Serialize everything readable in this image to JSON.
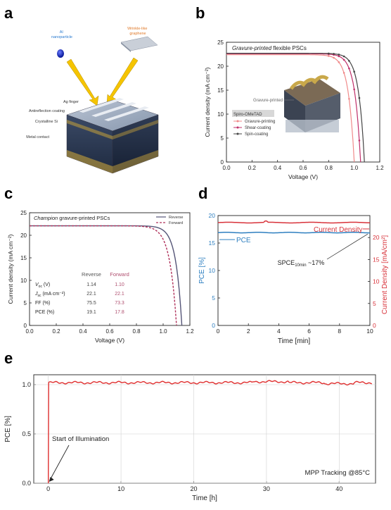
{
  "panels": {
    "a": {
      "letter": "a",
      "labels": {
        "al": "Al\nnanoparticle",
        "graphene": "Wrinkle-like\ngraphene",
        "ag_finger": "Ag finger",
        "antireflection": "Antireflection coating",
        "crystalline": "Crystalline Si",
        "metal": "Metal contact"
      }
    },
    "b": {
      "letter": "b"
    },
    "c": {
      "letter": "c"
    },
    "d": {
      "letter": "d"
    },
    "e": {
      "letter": "e"
    }
  },
  "chart_data": [
    {
      "id": "b",
      "type": "line",
      "title": "Gravure-printed flexible PSCs",
      "title_italic": "Gravure-printed",
      "title_rest": " flexible PSCs",
      "xlabel": "Voltage (V)",
      "ylabel": "Current density (mA cm⁻²)",
      "xlim": [
        0.0,
        1.2
      ],
      "ylim": [
        0,
        25
      ],
      "xticks": [
        "0.0",
        "0.2",
        "0.4",
        "0.6",
        "0.8",
        "1.0",
        "1.2"
      ],
      "yticks": [
        "0",
        "5",
        "10",
        "15",
        "20",
        "25"
      ],
      "inset_label": "Gravure-printed",
      "legend_title": "Spiro-OMeTAD",
      "legend_position": "inside-lower-left",
      "series": [
        {
          "name": "Gravure-printing",
          "color": "#f08a8a",
          "voc": 1.0,
          "jsc": 22.4,
          "n": 0.045
        },
        {
          "name": "Shear-coating",
          "color": "#c0306a",
          "voc": 1.05,
          "jsc": 22.6,
          "n": 0.045
        },
        {
          "name": "Spin-coating",
          "color": "#444444",
          "voc": 1.08,
          "jsc": 22.7,
          "n": 0.045
        }
      ]
    },
    {
      "id": "c",
      "type": "line",
      "title": "Champion gravure-printed PSCs",
      "title_italic": "Champion",
      "title_rest": " gravure-printed PSCs",
      "xlabel": "Voltage (V)",
      "ylabel": "Current density (mA cm⁻²)",
      "xlim": [
        0.0,
        1.2
      ],
      "ylim": [
        0,
        25
      ],
      "xticks": [
        "0.0",
        "0.2",
        "0.4",
        "0.6",
        "0.8",
        "1.0",
        "1.2"
      ],
      "yticks": [
        "0",
        "5",
        "10",
        "15",
        "20",
        "25"
      ],
      "legend_position": "top-right",
      "series": [
        {
          "name": "Reverse",
          "color": "#555577",
          "dash": "",
          "voc": 1.14,
          "jsc": 22.1,
          "n": 0.045
        },
        {
          "name": "Forward",
          "color": "#b0305a",
          "dash": "3,2",
          "voc": 1.1,
          "jsc": 22.1,
          "n": 0.05
        }
      ],
      "table": {
        "headers": [
          "",
          "Reverse",
          "Forward"
        ],
        "rows": [
          {
            "label": "V_oc (V)",
            "label_main": "V",
            "label_sub": "oc",
            "label_rest": " (V)",
            "reverse": "1.14",
            "forward": "1.10"
          },
          {
            "label": "J_sc (mA cm⁻²)",
            "label_main": "J",
            "label_sub": "sc",
            "label_rest": " (mA cm⁻²)",
            "reverse": "22.1",
            "forward": "22.1"
          },
          {
            "label": "FF (%)",
            "label_main": "FF (%)",
            "label_sub": "",
            "label_rest": "",
            "reverse": "75.5",
            "forward": "73.3"
          },
          {
            "label": "PCE (%)",
            "label_main": "PCE (%)",
            "label_sub": "",
            "label_rest": "",
            "reverse": "19.1",
            "forward": "17.8"
          }
        ]
      }
    },
    {
      "id": "d",
      "type": "line",
      "xlabel": "Time [min]",
      "ylabel_left": "PCE [%]",
      "ylabel_right": "Current Density [mA/cm²]",
      "xlim": [
        0,
        10
      ],
      "ylim_left": [
        0,
        20
      ],
      "ylim_right": [
        0,
        25
      ],
      "xticks": [
        "0",
        "2",
        "4",
        "6",
        "8",
        "10"
      ],
      "yticks_left": [
        "0",
        "5",
        "10",
        "15",
        "20"
      ],
      "yticks_right": [
        "0",
        "5",
        "10",
        "15",
        "20"
      ],
      "series": [
        {
          "name": "PCE",
          "axis": "left",
          "color": "#2e7fc0",
          "value": 16.9
        },
        {
          "name": "Current Density",
          "axis": "right",
          "color": "#d8323a",
          "value": 23.4
        }
      ],
      "annotation": {
        "main": "SPCE",
        "sub": "10min",
        "rest": " ~17%"
      }
    },
    {
      "id": "e",
      "type": "line",
      "xlabel": "Time [h]",
      "ylabel": "PCE [%]",
      "xlim": [
        -2,
        45
      ],
      "ylim": [
        0,
        1.1
      ],
      "xticks": [
        "0",
        "10",
        "20",
        "30",
        "40"
      ],
      "yticks": [
        "0.0",
        "0.5",
        "1.0"
      ],
      "series": [
        {
          "name": "PCE",
          "color": "#e03030",
          "value": 1.02
        }
      ],
      "annotations": [
        "Start of Illumination",
        "MPP Tracking @85°C"
      ]
    }
  ]
}
